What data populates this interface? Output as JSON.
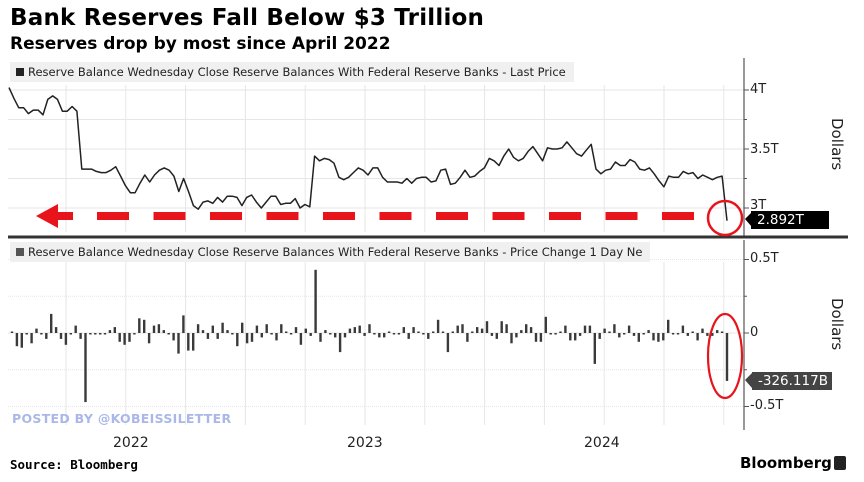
{
  "header": {
    "title": "Bank Reserves Fall Below $3 Trillion",
    "subtitle": "Reserves drop by most since April 2022"
  },
  "footer": {
    "source": "Source: Bloomberg",
    "brand": "Bloomberg",
    "watermark": "POSTED BY @KOBEISSILETTER"
  },
  "colors": {
    "line": "#222222",
    "bars": "#3a3a3a",
    "annotation_red": "#e8141c",
    "grid": "#e6e6e6",
    "callout_top_bg": "#000000",
    "callout_bottom_bg": "#444444"
  },
  "chart_data": [
    {
      "type": "line",
      "title": "Reserve Balance Wednesday Close Reserve Balances With Federal Reserve Banks - Last Price",
      "legend": "Reserve Balance Wednesday Close Reserve Balances With Federal Reserve Banks - Last Price",
      "legend_placement": "top-left",
      "ylabel": "Dollars",
      "ylim": [
        2.77,
        4.2
      ],
      "yticks": [
        {
          "value": 4.0,
          "label": "4T"
        },
        {
          "value": 3.5,
          "label": "3.5T"
        },
        {
          "value": 3.0,
          "label": "3T"
        }
      ],
      "grid": true,
      "last_value_label": "2.892T",
      "x_range": [
        "2021-09",
        "2024-07"
      ],
      "x_index_range": [
        0,
        148
      ],
      "values": [
        4.02,
        3.93,
        3.85,
        3.85,
        3.8,
        3.83,
        3.83,
        3.79,
        3.92,
        3.95,
        3.92,
        3.82,
        3.82,
        3.86,
        3.82,
        3.33,
        3.33,
        3.33,
        3.31,
        3.3,
        3.3,
        3.32,
        3.35,
        3.27,
        3.19,
        3.13,
        3.13,
        3.21,
        3.28,
        3.22,
        3.28,
        3.32,
        3.34,
        3.32,
        3.27,
        3.14,
        3.25,
        3.14,
        3.02,
        2.99,
        3.05,
        3.06,
        3.04,
        3.09,
        3.05,
        3.1,
        3.1,
        3.09,
        3.02,
        3.09,
        3.11,
        3.05,
        3.0,
        3.05,
        3.1,
        3.1,
        3.03,
        3.04,
        3.04,
        3.08,
        3.0,
        3.03,
        3.01,
        3.44,
        3.4,
        3.42,
        3.41,
        3.38,
        3.26,
        3.24,
        3.26,
        3.3,
        3.34,
        3.32,
        3.28,
        3.34,
        3.34,
        3.26,
        3.22,
        3.22,
        3.22,
        3.21,
        3.25,
        3.21,
        3.25,
        3.26,
        3.26,
        3.22,
        3.23,
        3.32,
        3.33,
        3.2,
        3.21,
        3.26,
        3.32,
        3.26,
        3.27,
        3.31,
        3.34,
        3.42,
        3.4,
        3.36,
        3.44,
        3.5,
        3.43,
        3.4,
        3.42,
        3.48,
        3.52,
        3.46,
        3.4,
        3.51,
        3.5,
        3.5,
        3.51,
        3.56,
        3.51,
        3.46,
        3.44,
        3.49,
        3.54,
        3.33,
        3.29,
        3.32,
        3.33,
        3.39,
        3.36,
        3.36,
        3.41,
        3.39,
        3.33,
        3.32,
        3.34,
        3.29,
        3.23,
        3.18,
        3.27,
        3.26,
        3.26,
        3.31,
        3.29,
        3.3,
        3.25,
        3.28,
        3.26,
        3.24,
        3.26,
        3.27,
        2.892
      ]
    },
    {
      "type": "bar",
      "title": "Reserve Balance Wednesday Close Reserve Balances With Federal Reserve Banks - Price Change 1 Day Ne",
      "legend": "Reserve Balance Wednesday Close Reserve Balances With Federal Reserve Banks - Price Change 1 Day Ne",
      "legend_placement": "top-left",
      "ylabel": "Dollars",
      "ylim": [
        -0.55,
        0.58
      ],
      "yticks": [
        {
          "value": 0.5,
          "label": "0.5T"
        },
        {
          "value": 0,
          "label": "0"
        },
        {
          "value": -0.5,
          "label": "-0.5T"
        }
      ],
      "grid": true,
      "last_value_label": "-326.117B",
      "values": [
        0.01,
        -0.09,
        -0.1,
        0.0,
        -0.07,
        0.03,
        0.0,
        -0.04,
        0.13,
        0.04,
        -0.04,
        -0.08,
        0.0,
        0.05,
        -0.04,
        -0.47,
        0.0,
        -0.01,
        -0.01,
        0.0,
        0.02,
        0.04,
        -0.06,
        -0.08,
        -0.06,
        0.0,
        0.1,
        0.09,
        -0.07,
        0.05,
        0.06,
        0.02,
        0.0,
        -0.05,
        -0.14,
        0.12,
        -0.12,
        -0.12,
        0.06,
        0.02,
        -0.04,
        0.05,
        -0.04,
        0.07,
        0.02,
        0.0,
        -0.09,
        0.07,
        -0.07,
        -0.06,
        0.05,
        -0.03,
        0.06,
        0.0,
        -0.05,
        0.06,
        0.01,
        0.0,
        0.04,
        -0.08,
        0.03,
        -0.02,
        0.43,
        -0.06,
        0.02,
        -0.01,
        -0.03,
        -0.13,
        -0.03,
        0.03,
        0.04,
        0.05,
        -0.02,
        0.06,
        0.0,
        -0.03,
        -0.03,
        0.01,
        0.0,
        -0.01,
        0.04,
        -0.04,
        0.04,
        0.01,
        0.0,
        -0.04,
        0.01,
        0.09,
        0.01,
        -0.13,
        0.01,
        0.05,
        0.06,
        -0.06,
        0.01,
        0.04,
        0.03,
        0.08,
        -0.02,
        -0.04,
        0.08,
        0.06,
        -0.07,
        -0.03,
        0.02,
        0.06,
        0.04,
        -0.06,
        -0.06,
        0.11,
        -0.01,
        0.0,
        0.01,
        0.05,
        -0.05,
        -0.05,
        -0.02,
        0.05,
        0.05,
        -0.21,
        -0.04,
        0.03,
        0.01,
        0.06,
        -0.03,
        0.0,
        0.05,
        -0.02,
        -0.06,
        -0.01,
        0.02,
        -0.05,
        -0.06,
        -0.05,
        0.09,
        -0.01,
        0.0,
        0.05,
        -0.02,
        0.01,
        -0.05,
        0.03,
        -0.02,
        -0.02,
        0.02,
        0.01,
        -0.326
      ]
    }
  ],
  "x_axis": {
    "ticks": [
      {
        "label": "2022",
        "index": 16
      },
      {
        "label": "2023",
        "index": 68
      },
      {
        "label": "2024",
        "index": 121
      }
    ]
  },
  "annotations": {
    "arrow": "red dashed left-pointing arrow at ~2.89T level",
    "circles": "red circles around the latest points"
  }
}
